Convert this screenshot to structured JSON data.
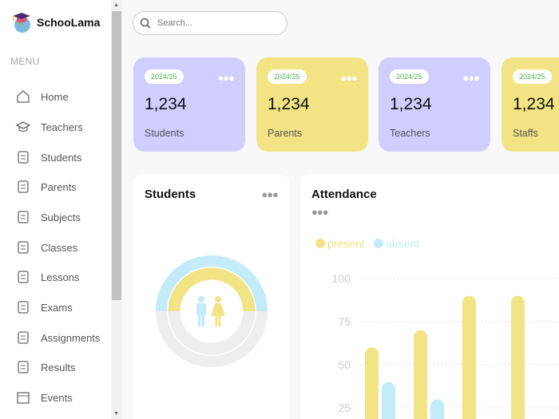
{
  "app": {
    "name": "SchooLama"
  },
  "sidebar": {
    "menu_title": "MENU",
    "items": [
      {
        "label": "Home",
        "icon": "home-icon"
      },
      {
        "label": "Teachers",
        "icon": "graduation-cap-icon"
      },
      {
        "label": "Students",
        "icon": "students-icon"
      },
      {
        "label": "Parents",
        "icon": "parents-icon"
      },
      {
        "label": "Subjects",
        "icon": "subjects-icon"
      },
      {
        "label": "Classes",
        "icon": "classes-icon"
      },
      {
        "label": "Lessons",
        "icon": "lessons-icon"
      },
      {
        "label": "Exams",
        "icon": "exams-icon"
      },
      {
        "label": "Assignments",
        "icon": "assignments-icon"
      },
      {
        "label": "Results",
        "icon": "results-icon"
      },
      {
        "label": "Events",
        "icon": "calendar-icon"
      }
    ]
  },
  "search": {
    "placeholder": "Search..."
  },
  "cards": [
    {
      "badge": "2024/25",
      "value": "1,234",
      "label": "Students",
      "color": "#CFCEFF"
    },
    {
      "badge": "2024/25",
      "value": "1,234",
      "label": "Parents",
      "color": "#F2E384"
    },
    {
      "badge": "2024/25",
      "value": "1,234",
      "label": "Teachers",
      "color": "#CFCEFF"
    },
    {
      "badge": "2024/25",
      "value": "1,234",
      "label": "Staffs",
      "color": "#F2E384"
    }
  ],
  "students_panel": {
    "title": "Students",
    "colors": {
      "boys": "#C3EBFA",
      "girls": "#F2E384",
      "rest": "#EEEDEF"
    }
  },
  "attendance": {
    "title": "Attendance"
  },
  "chart_data": {
    "type": "bar",
    "title": "Attendance",
    "yticks": [
      25,
      50,
      75,
      100
    ],
    "ylim": [
      0,
      100
    ],
    "grid": true,
    "legend": "top-left",
    "series": [
      {
        "name": "present",
        "color": "#F2E384",
        "values": [
          60,
          70,
          90,
          90
        ]
      },
      {
        "name": "absent",
        "color": "#C3EBFA",
        "values": [
          40,
          30,
          null,
          null
        ]
      }
    ]
  }
}
